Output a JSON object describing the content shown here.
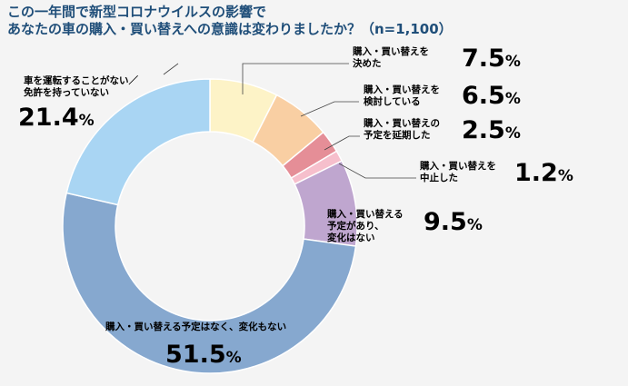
{
  "title": {
    "line1": "この一年間で新型コロナウイルスの影響で",
    "line2": "あなたの車の購入・買い替えへの意識は変わりましたか？（n=1,100）"
  },
  "chart_data": {
    "type": "donut",
    "title": "この一年間で新型コロナウイルスの影響で あなたの車の購入・買い替えへの意識は変わりましたか？（n=1,100）",
    "n": 1100,
    "unit": "%",
    "slices": [
      {
        "key": "decided",
        "label_lines": [
          "購入・買い替えを",
          "決めた"
        ],
        "value": 7.5,
        "value_text": "7.5",
        "color": "#fdf3c7"
      },
      {
        "key": "considering",
        "label_lines": [
          "購入・買い替えを",
          "検討している"
        ],
        "value": 6.5,
        "value_text": "6.5",
        "color": "#f9cfa3"
      },
      {
        "key": "postponed",
        "label_lines": [
          "購入・買い替えの",
          "予定を延期した"
        ],
        "value": 2.5,
        "value_text": "2.5",
        "color": "#e58e97"
      },
      {
        "key": "cancelled",
        "label_lines": [
          "購入・買い替えを",
          "中止した"
        ],
        "value": 1.2,
        "value_text": "1.2",
        "color": "#f6bfcc"
      },
      {
        "key": "plan_changed",
        "label_lines": [
          "購入・買い替える",
          "予定があり、",
          "変化はない"
        ],
        "value": 9.5,
        "value_text": "9.5",
        "color": "#bfa6cf"
      },
      {
        "key": "no_plan",
        "label_lines": [
          "購入・買い替える予定はなく、変化もない"
        ],
        "value": 51.5,
        "value_text": "51.5",
        "color": "#86a8cf"
      },
      {
        "key": "no_license",
        "label_lines": [
          "車を運転することがない／",
          "免許を持っていない"
        ],
        "value": 21.4,
        "value_text": "21.4",
        "color": "#a9d5f3"
      }
    ]
  }
}
